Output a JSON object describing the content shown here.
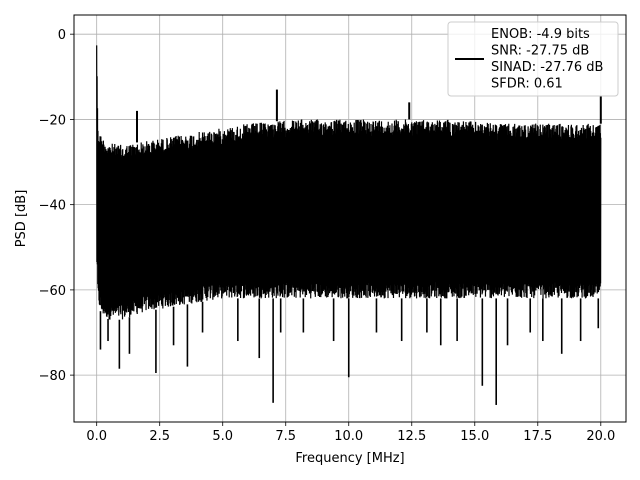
{
  "chart_data": {
    "type": "line",
    "title": "",
    "xlabel": "Frequency [MHz]",
    "ylabel": "PSD [dB]",
    "xlim": [
      -0.9,
      21.0
    ],
    "ylim": [
      -91,
      4.5
    ],
    "xticks": [
      0.0,
      2.5,
      5.0,
      7.5,
      10.0,
      12.5,
      15.0,
      17.5,
      20.0
    ],
    "xtick_labels": [
      "0.0",
      "2.5",
      "5.0",
      "7.5",
      "10.0",
      "12.5",
      "15.0",
      "17.5",
      "20.0"
    ],
    "yticks": [
      0,
      -20,
      -40,
      -60,
      -80
    ],
    "ytick_labels": [
      "0",
      "−20",
      "−40",
      "−60",
      "−80"
    ],
    "grid": true,
    "legend_position": "top-right",
    "legend": [
      "ENOB: -4.9 bits",
      "SNR: -27.75 dB",
      "SINAD: -27.76 dB",
      "SFDR: 0.61"
    ],
    "series_color": "#000000",
    "envelope": {
      "x": [
        0.0,
        0.05,
        0.2,
        0.5,
        1.0,
        1.5,
        2.0,
        3.0,
        4.0,
        5.0,
        6.0,
        7.0,
        8.0,
        9.0,
        10.0,
        11.0,
        12.0,
        13.0,
        14.0,
        15.0,
        16.0,
        17.0,
        18.0,
        19.0,
        20.0
      ],
      "upper": [
        0,
        -22,
        -24,
        -25.5,
        -26,
        -25.5,
        -25,
        -24,
        -23,
        -22,
        -21,
        -20.5,
        -20,
        -20,
        -20,
        -20,
        -20,
        -20,
        -20,
        -20.5,
        -21,
        -21,
        -21,
        -21,
        -21
      ],
      "lower": [
        -53,
        -63,
        -66,
        -67,
        -67,
        -66,
        -65,
        -64,
        -63,
        -62,
        -62,
        -62,
        -62,
        -62,
        -62,
        -62,
        -62,
        -62,
        -62,
        -62,
        -62,
        -62,
        -62,
        -62,
        -62
      ]
    },
    "peaks": [
      {
        "x": 0.0,
        "y": 0
      },
      {
        "x": 1.6,
        "y": -18
      },
      {
        "x": 7.15,
        "y": -13
      },
      {
        "x": 12.4,
        "y": -16
      },
      {
        "x": 20.0,
        "y": -14.5
      }
    ],
    "dips": [
      {
        "x": 0.15,
        "y": -74
      },
      {
        "x": 0.45,
        "y": -72
      },
      {
        "x": 0.9,
        "y": -78.5
      },
      {
        "x": 1.3,
        "y": -75
      },
      {
        "x": 2.35,
        "y": -79.5
      },
      {
        "x": 3.05,
        "y": -73
      },
      {
        "x": 3.6,
        "y": -78
      },
      {
        "x": 4.2,
        "y": -70
      },
      {
        "x": 5.6,
        "y": -72
      },
      {
        "x": 6.45,
        "y": -76
      },
      {
        "x": 7.0,
        "y": -86.5
      },
      {
        "x": 7.3,
        "y": -70
      },
      {
        "x": 8.2,
        "y": -70
      },
      {
        "x": 9.4,
        "y": -72
      },
      {
        "x": 10.0,
        "y": -80.5
      },
      {
        "x": 11.1,
        "y": -70
      },
      {
        "x": 12.1,
        "y": -72
      },
      {
        "x": 13.1,
        "y": -70
      },
      {
        "x": 13.65,
        "y": -73
      },
      {
        "x": 14.3,
        "y": -72
      },
      {
        "x": 15.3,
        "y": -82.5
      },
      {
        "x": 15.85,
        "y": -87
      },
      {
        "x": 16.3,
        "y": -73
      },
      {
        "x": 17.2,
        "y": -70
      },
      {
        "x": 17.7,
        "y": -72
      },
      {
        "x": 18.45,
        "y": -75
      },
      {
        "x": 19.2,
        "y": -72
      },
      {
        "x": 19.9,
        "y": -69
      }
    ]
  }
}
